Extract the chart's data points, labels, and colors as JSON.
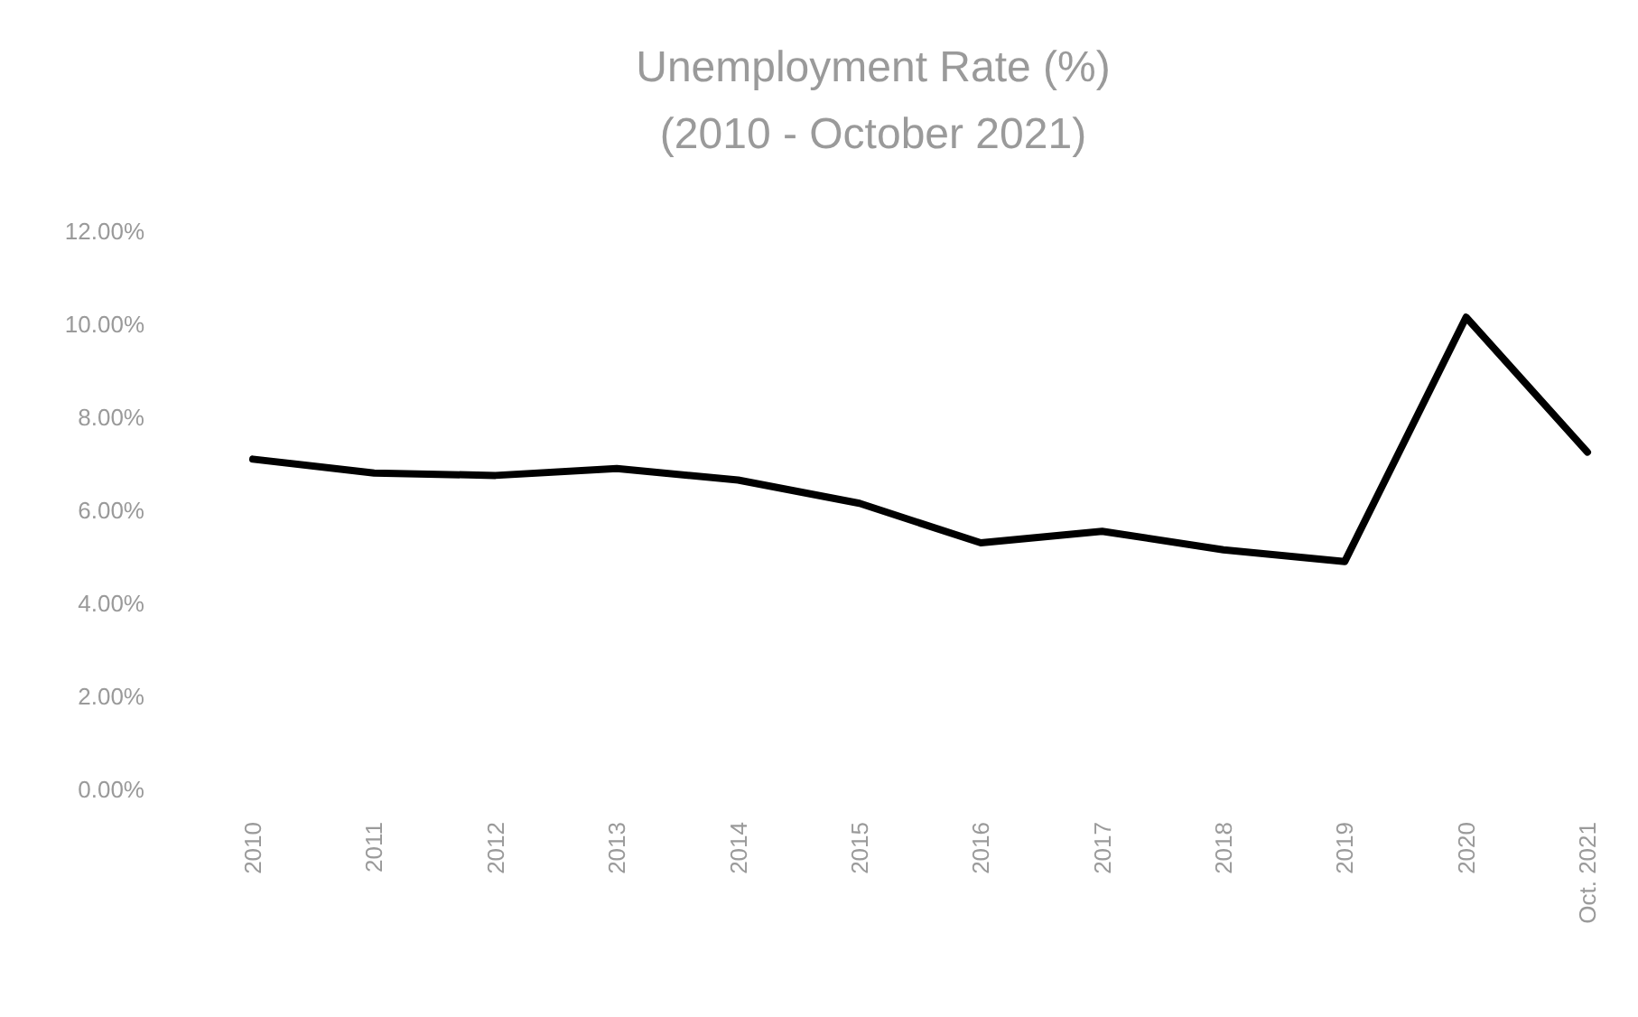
{
  "chart_data": {
    "type": "line",
    "title": "Unemployment Rate (%)",
    "subtitle": "(2010 - October 2021)",
    "categories": [
      "2010",
      "2011",
      "2012",
      "2013",
      "2014",
      "2015",
      "2016",
      "2017",
      "2018",
      "2019",
      "2020",
      "Oct. 2021"
    ],
    "series": [
      {
        "color": "#000000",
        "values": [
          7.1,
          6.8,
          6.75,
          6.9,
          6.65,
          6.15,
          5.3,
          5.55,
          5.15,
          4.9,
          10.15,
          7.25
        ]
      }
    ],
    "ylim": [
      0,
      12
    ],
    "yticks": [
      {
        "value": 0,
        "label": "0.00%"
      },
      {
        "value": 2,
        "label": "2.00%"
      },
      {
        "value": 4,
        "label": "4.00%"
      },
      {
        "value": 6,
        "label": "6.00%"
      },
      {
        "value": 8,
        "label": "8.00%"
      },
      {
        "value": 10,
        "label": "10.00%"
      },
      {
        "value": 12,
        "label": "12.00%"
      }
    ],
    "grid": false,
    "marker": "none",
    "line_style": "solid"
  }
}
